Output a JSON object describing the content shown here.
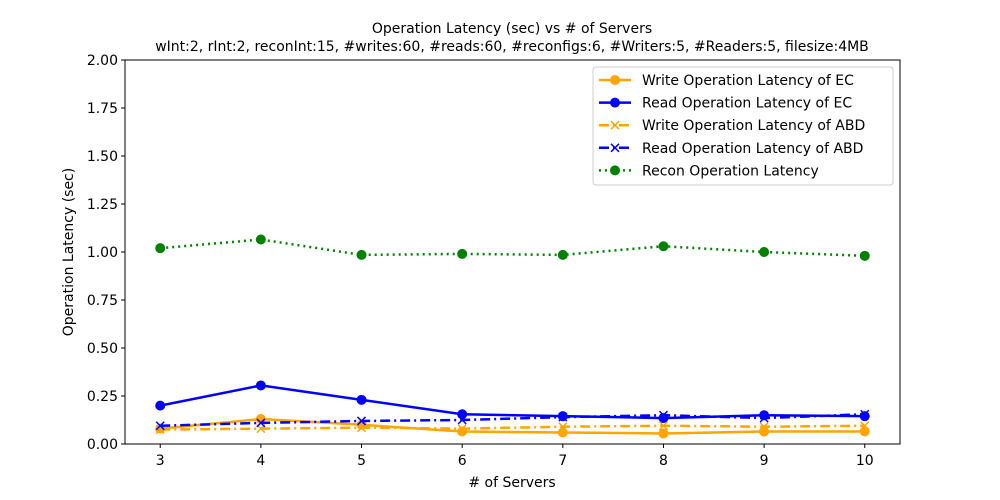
{
  "chart_data": {
    "type": "line",
    "title": "Operation Latency (sec) vs # of Servers",
    "subtitle": "wInt:2, rInt:2, reconInt:15, #writes:60, #reads:60, #reconfigs:6, #Writers:5, #Readers:5, filesize:4MB",
    "xlabel": "# of Servers",
    "ylabel": "Operation Latency (sec)",
    "x": [
      3,
      4,
      5,
      6,
      7,
      8,
      9,
      10
    ],
    "xlim": [
      2.65,
      10.35
    ],
    "ylim": [
      0,
      2.0
    ],
    "yticks": [
      "0.00",
      "0.25",
      "0.50",
      "0.75",
      "1.00",
      "1.25",
      "1.50",
      "1.75",
      "2.00"
    ],
    "xticks": [
      "3",
      "4",
      "5",
      "6",
      "7",
      "8",
      "9",
      "10"
    ],
    "grid": false,
    "legend_position": "top-right",
    "series": [
      {
        "name": "Write Operation Latency of EC",
        "color": "#ffa500",
        "dash": "solid",
        "marker": "circle",
        "values": [
          0.08,
          0.13,
          0.1,
          0.065,
          0.06,
          0.055,
          0.065,
          0.065
        ]
      },
      {
        "name": "Read Operation Latency of EC",
        "color": "#0000ff",
        "dash": "solid",
        "marker": "circle",
        "values": [
          0.2,
          0.305,
          0.23,
          0.155,
          0.145,
          0.135,
          0.15,
          0.145
        ]
      },
      {
        "name": "Write Operation Latency of ABD",
        "color": "#ffa500",
        "dash": "dashdot",
        "marker": "x",
        "values": [
          0.075,
          0.08,
          0.085,
          0.08,
          0.09,
          0.095,
          0.09,
          0.095
        ]
      },
      {
        "name": "Read Operation Latency of ABD",
        "color": "#0000ff",
        "dash": "dashdot",
        "marker": "x",
        "values": [
          0.095,
          0.11,
          0.12,
          0.125,
          0.14,
          0.15,
          0.135,
          0.155
        ]
      },
      {
        "name": "Recon Operation Latency",
        "color": "#008000",
        "dash": "dotted",
        "marker": "circle",
        "values": [
          1.02,
          1.065,
          0.985,
          0.99,
          0.985,
          1.03,
          1.0,
          0.98
        ]
      }
    ]
  }
}
